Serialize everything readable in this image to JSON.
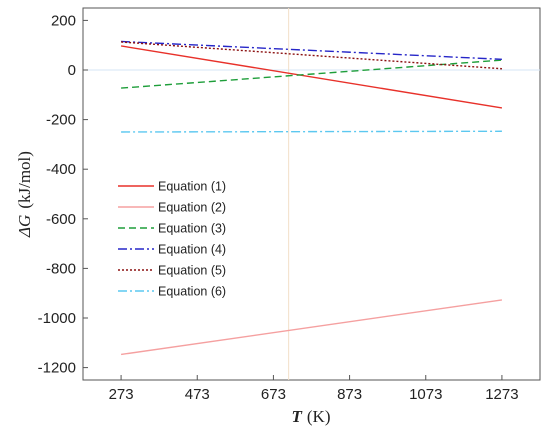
{
  "chart_data": {
    "type": "line",
    "xlabel_symbol": "T",
    "xlabel_unit": "(K)",
    "ylabel_symbol": "ΔG",
    "ylabel_unit": "(kJ/mol)",
    "xlim": [
      173,
      1373
    ],
    "ylim": [
      -1250,
      250
    ],
    "xticks": [
      273,
      473,
      673,
      873,
      1073,
      1273
    ],
    "yticks": [
      200,
      0,
      -200,
      -400,
      -600,
      -800,
      -1000,
      -1200
    ],
    "x": [
      273,
      1273
    ],
    "reference_lines": {
      "horizontal_y": 0,
      "vertical_x": 713
    },
    "legend_position": "upper-left",
    "series": [
      {
        "name": "Equation (1)",
        "values": [
          97,
          -153
        ],
        "color": "#e8312a",
        "dash": "solid"
      },
      {
        "name": "Equation (2)",
        "values": [
          -1147,
          -927
        ],
        "color": "#f5a0a0",
        "dash": "solid"
      },
      {
        "name": "Equation (3)",
        "values": [
          -73,
          40
        ],
        "color": "#1e9e3a",
        "dash": "dashed"
      },
      {
        "name": "Equation (4)",
        "values": [
          115,
          43
        ],
        "color": "#2626c8",
        "dash": "dashdot"
      },
      {
        "name": "Equation (5)",
        "values": [
          113,
          5
        ],
        "color": "#8b1010",
        "dash": "dotted"
      },
      {
        "name": "Equation (6)",
        "values": [
          -250,
          -247
        ],
        "color": "#5cc8f0",
        "dash": "dashdot"
      }
    ]
  }
}
